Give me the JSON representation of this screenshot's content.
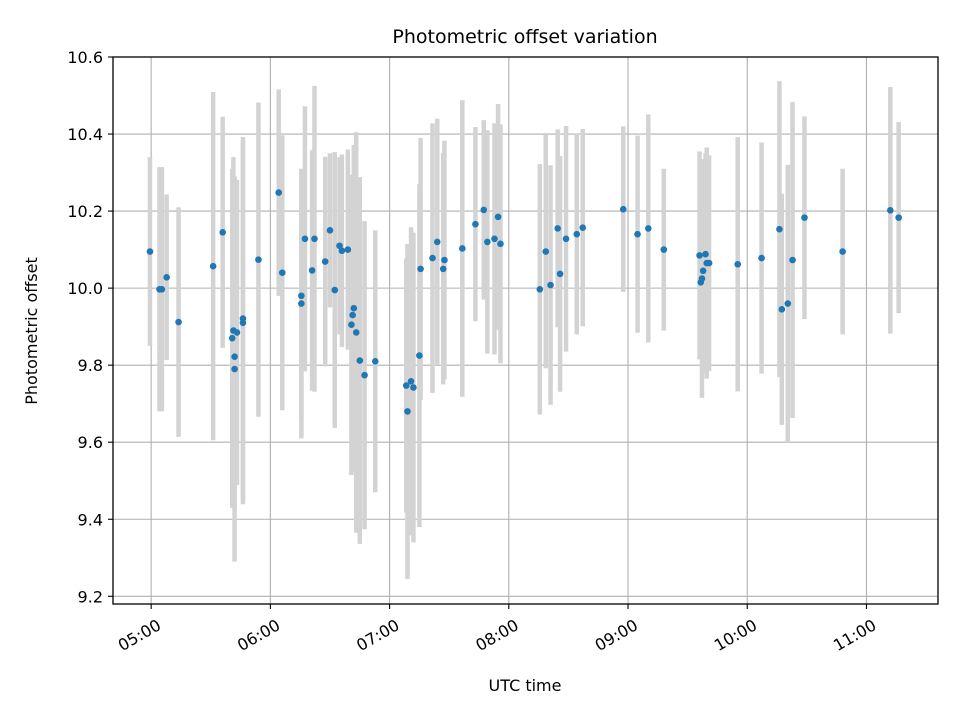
{
  "chart_data": {
    "type": "scatter",
    "title": "Photometric offset variation",
    "xlabel": "UTC time",
    "ylabel": "Photometric offset",
    "x_unit": "UTC time of day (hours)",
    "xlim": [
      4.68,
      11.6
    ],
    "ylim": [
      9.18,
      10.6
    ],
    "xticks": [
      5,
      6,
      7,
      8,
      9,
      10,
      11
    ],
    "xtick_labels": [
      "05:00",
      "06:00",
      "07:00",
      "08:00",
      "09:00",
      "10:00",
      "11:00"
    ],
    "yticks": [
      9.2,
      9.4,
      9.6,
      9.8,
      10.0,
      10.2,
      10.4,
      10.6
    ],
    "ytick_labels": [
      "9.2",
      "9.4",
      "9.6",
      "9.8",
      "10.0",
      "10.2",
      "10.4",
      "10.6"
    ],
    "grid": true,
    "colors": {
      "marker": "#1f77b4",
      "errorbar": "#d3d3d3",
      "grid": "#b0b0b0"
    },
    "points": [
      [
        4.99,
        10.095,
        0.245
      ],
      [
        5.07,
        9.997,
        0.317
      ],
      [
        5.09,
        9.997,
        0.317
      ],
      [
        5.13,
        10.028,
        0.215
      ],
      [
        5.23,
        9.912,
        0.298
      ],
      [
        5.52,
        10.057,
        0.452
      ],
      [
        5.6,
        10.145,
        0.3
      ],
      [
        5.68,
        9.87,
        0.44
      ],
      [
        5.69,
        9.89,
        0.45
      ],
      [
        5.7,
        9.79,
        0.5
      ],
      [
        5.7,
        9.822,
        0.4
      ],
      [
        5.72,
        9.885,
        0.396
      ],
      [
        5.77,
        9.921,
        0.471
      ],
      [
        5.77,
        9.91,
        0.471
      ],
      [
        5.9,
        10.074,
        0.408
      ],
      [
        6.07,
        10.248,
        0.268
      ],
      [
        6.1,
        10.04,
        0.357
      ],
      [
        6.26,
        9.96,
        0.35
      ],
      [
        6.26,
        9.98,
        0.32
      ],
      [
        6.29,
        10.128,
        0.344
      ],
      [
        6.35,
        10.046,
        0.312
      ],
      [
        6.37,
        10.128,
        0.397
      ],
      [
        6.46,
        10.069,
        0.272
      ],
      [
        6.5,
        10.15,
        0.2
      ],
      [
        6.54,
        9.995,
        0.358
      ],
      [
        6.58,
        10.11,
        0.23
      ],
      [
        6.6,
        10.097,
        0.25
      ],
      [
        6.65,
        10.1,
        0.26
      ],
      [
        6.68,
        9.905,
        0.39
      ],
      [
        6.69,
        9.93,
        0.35
      ],
      [
        6.7,
        9.948,
        0.424
      ],
      [
        6.72,
        9.885,
        0.52
      ],
      [
        6.75,
        9.812,
        0.476
      ],
      [
        6.79,
        9.774,
        0.4
      ],
      [
        6.88,
        9.81,
        0.34
      ],
      [
        7.14,
        9.747,
        0.33
      ],
      [
        7.15,
        9.68,
        0.435
      ],
      [
        7.18,
        9.758,
        0.4
      ],
      [
        7.2,
        9.742,
        0.402
      ],
      [
        7.25,
        9.825,
        0.445
      ],
      [
        7.26,
        10.05,
        0.34
      ],
      [
        7.36,
        10.078,
        0.35
      ],
      [
        7.4,
        10.12,
        0.32
      ],
      [
        7.45,
        10.05,
        0.3
      ],
      [
        7.46,
        10.073,
        0.31
      ],
      [
        7.61,
        10.103,
        0.385
      ],
      [
        7.72,
        10.166,
        0.252
      ],
      [
        7.79,
        10.203,
        0.233
      ],
      [
        7.82,
        10.12,
        0.29
      ],
      [
        7.88,
        10.128,
        0.3
      ],
      [
        7.91,
        10.185,
        0.293
      ],
      [
        7.93,
        10.115,
        0.31
      ],
      [
        8.26,
        9.997,
        0.325
      ],
      [
        8.31,
        10.095,
        0.303
      ],
      [
        8.35,
        10.008,
        0.311
      ],
      [
        8.41,
        10.155,
        0.257
      ],
      [
        8.43,
        10.037,
        0.306
      ],
      [
        8.48,
        10.128,
        0.293
      ],
      [
        8.57,
        10.14,
        0.26
      ],
      [
        8.62,
        10.157,
        0.256
      ],
      [
        8.96,
        10.205,
        0.215
      ],
      [
        9.08,
        10.14,
        0.256
      ],
      [
        9.17,
        10.155,
        0.296
      ],
      [
        9.3,
        10.1,
        0.21
      ],
      [
        9.6,
        10.085,
        0.27
      ],
      [
        9.61,
        10.015,
        0.2
      ],
      [
        9.62,
        10.025,
        0.31
      ],
      [
        9.63,
        10.045,
        0.265
      ],
      [
        9.65,
        10.088,
        0.262
      ],
      [
        9.66,
        10.065,
        0.3
      ],
      [
        9.68,
        10.065,
        0.28
      ],
      [
        9.92,
        10.062,
        0.33
      ],
      [
        10.12,
        10.078,
        0.3
      ],
      [
        10.27,
        10.153,
        0.384
      ],
      [
        10.29,
        9.945,
        0.3
      ],
      [
        10.34,
        9.96,
        0.36
      ],
      [
        10.38,
        10.073,
        0.41
      ],
      [
        10.48,
        10.183,
        0.263
      ],
      [
        10.8,
        10.095,
        0.215
      ],
      [
        11.2,
        10.202,
        0.32
      ],
      [
        11.27,
        10.183,
        0.248
      ]
    ]
  }
}
